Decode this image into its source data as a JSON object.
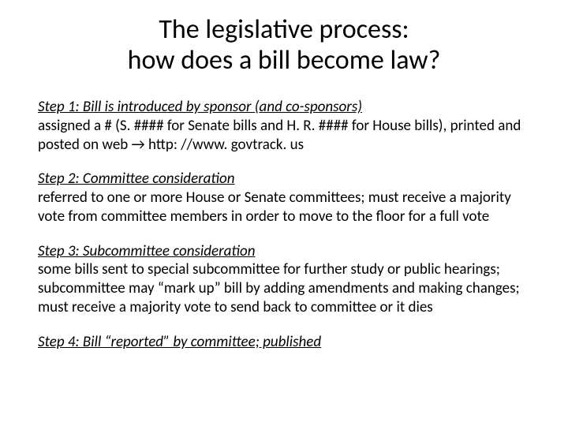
{
  "title_line1": "The legislative process:",
  "title_line2": "how does a bill become law?",
  "steps": [
    {
      "heading": "Step 1:  Bill is introduced by sponsor (and co-sponsors)",
      "body": "assigned a # (S. #### for Senate bills and H. R. #### for House bills), printed and posted on web →  http: //www. govtrack. us"
    },
    {
      "heading": "Step 2:  Committee consideration",
      "body": "referred to one or more House or Senate committees; must receive a majority vote from committee members in order to move to the floor for a full vote"
    },
    {
      "heading": "Step 3:  Subcommittee consideration",
      "body": "some bills sent to special subcommittee for further study or public hearings; subcommittee may “mark up” bill by adding amendments and making changes; must receive a majority vote to send back to committee or it dies"
    },
    {
      "heading": "Step 4:  Bill “reported” by committee; published",
      "body": ""
    }
  ],
  "colors": {
    "background": "#ffffff",
    "text": "#000000"
  },
  "typography": {
    "font_family": "Calibri",
    "title_fontsize_pt": 26,
    "body_fontsize_pt": 14,
    "title_weight": "400",
    "heading_style": "italic underline"
  }
}
